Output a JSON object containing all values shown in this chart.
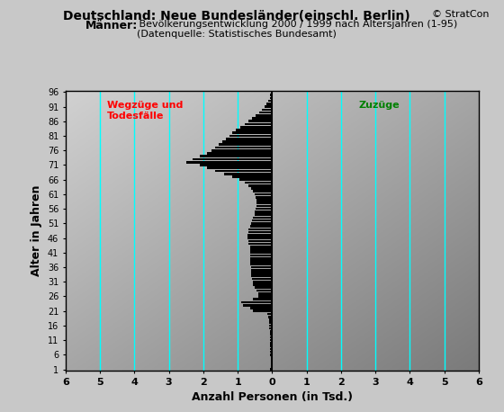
{
  "title1": "Deutschland: Neue Bundesländer(einschl. Berlin)",
  "title2_bold": "Männer:",
  "title2_normal": " Bevölkerungsentwicklung 2000 / 1999 nach Altersjahren (1-95)",
  "title3": "(Datenquelle: Statistisches Bundesamt)",
  "copyright": "© StratCon",
  "xlabel": "Anzahl Personen (in Tsd.)",
  "ylabel": "Alter in Jahren",
  "label_left": "Wegzüge und\nTodesfälle",
  "label_right": "Zuzüge",
  "xlim": [
    -6,
    6
  ],
  "xticks": [
    -6,
    -5,
    -4,
    -3,
    -2,
    -1,
    0,
    1,
    2,
    3,
    4,
    5,
    6
  ],
  "xticklabels": [
    "6",
    "5",
    "4",
    "3",
    "2",
    "1",
    "0",
    "1",
    "2",
    "3",
    "4",
    "5",
    "6"
  ],
  "ytick_positions": [
    1,
    6,
    11,
    16,
    21,
    26,
    31,
    36,
    41,
    46,
    51,
    56,
    61,
    66,
    71,
    76,
    81,
    86,
    91,
    96
  ],
  "ytick_labels": [
    "1",
    "6",
    "11",
    "16",
    "21",
    "26",
    "31",
    "36",
    "41",
    "46",
    "51",
    "56",
    "61",
    "66",
    "71",
    "76",
    "81",
    "86",
    "91",
    "96"
  ],
  "cyan_lines": [
    -5,
    -4,
    -3,
    -2,
    -1,
    1,
    2,
    3,
    4,
    5
  ],
  "bar_color": "#000000",
  "values": [
    -0.05,
    -0.04,
    -0.04,
    -0.04,
    -0.04,
    -0.05,
    -0.05,
    -0.05,
    -0.05,
    -0.06,
    -0.06,
    -0.06,
    -0.07,
    -0.07,
    -0.08,
    -0.08,
    -0.09,
    -0.1,
    -0.11,
    -0.13,
    -0.55,
    -0.65,
    -0.85,
    -0.9,
    -0.55,
    -0.4,
    -0.4,
    -0.45,
    -0.5,
    -0.55,
    -0.55,
    -0.58,
    -0.6,
    -0.6,
    -0.62,
    -0.62,
    -0.63,
    -0.63,
    -0.65,
    -0.65,
    -0.65,
    -0.65,
    -0.65,
    -0.68,
    -0.7,
    -0.72,
    -0.72,
    -0.7,
    -0.68,
    -0.65,
    -0.6,
    -0.58,
    -0.55,
    -0.52,
    -0.5,
    -0.48,
    -0.45,
    -0.45,
    -0.45,
    -0.48,
    -0.5,
    -0.55,
    -0.6,
    -0.7,
    -0.8,
    -0.95,
    -1.15,
    -1.4,
    -1.65,
    -1.9,
    -2.1,
    -2.5,
    -2.3,
    -2.1,
    -1.9,
    -1.75,
    -1.65,
    -1.55,
    -1.45,
    -1.35,
    -1.25,
    -1.15,
    -1.05,
    -0.92,
    -0.8,
    -0.68,
    -0.58,
    -0.47,
    -0.38,
    -0.3,
    -0.22,
    -0.16,
    -0.11,
    -0.07,
    -0.05
  ]
}
